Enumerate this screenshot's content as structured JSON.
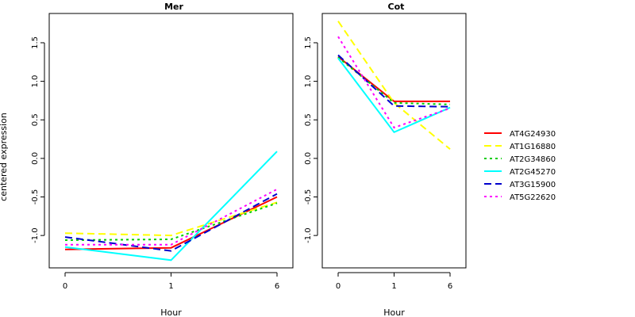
{
  "chart_data": {
    "type": "line",
    "ylabel": "centered expression",
    "xlabel": "Hour",
    "x_ticks": [
      "0",
      "1",
      "6"
    ],
    "y_ticks": [
      "-1.0",
      "-0.5",
      "0.0",
      "0.5",
      "1.0",
      "1.5"
    ],
    "ylim": [
      -1.42,
      1.88
    ],
    "legend_position": "right",
    "series_styles": [
      {
        "name": "AT4G24930",
        "color": "#ff0000",
        "dash": "solid"
      },
      {
        "name": "AT1G16880",
        "color": "#ffff00",
        "dash": "dashed"
      },
      {
        "name": "AT2G34860",
        "color": "#00cd00",
        "dash": "dotted"
      },
      {
        "name": "AT2G45270",
        "color": "#00ffff",
        "dash": "solid"
      },
      {
        "name": "AT3G15900",
        "color": "#0000cd",
        "dash": "dashed"
      },
      {
        "name": "AT5G22620",
        "color": "#ff00ff",
        "dash": "dotted"
      }
    ],
    "panels": [
      {
        "title": "Mer",
        "series": [
          {
            "name": "AT4G24930",
            "values": [
              -1.18,
              -1.16,
              -0.5
            ]
          },
          {
            "name": "AT1G16880",
            "values": [
              -0.97,
              -1.0,
              -0.57
            ]
          },
          {
            "name": "AT2G34860",
            "values": [
              -1.06,
              -1.05,
              -0.58
            ]
          },
          {
            "name": "AT2G45270",
            "values": [
              -1.15,
              -1.32,
              0.09
            ]
          },
          {
            "name": "AT3G15900",
            "values": [
              -1.02,
              -1.2,
              -0.46
            ]
          },
          {
            "name": "AT5G22620",
            "values": [
              -1.12,
              -1.12,
              -0.4
            ]
          }
        ]
      },
      {
        "title": "Cot",
        "series": [
          {
            "name": "AT4G24930",
            "values": [
              1.32,
              0.74,
              0.74
            ]
          },
          {
            "name": "AT1G16880",
            "values": [
              1.78,
              0.72,
              0.12
            ]
          },
          {
            "name": "AT2G34860",
            "values": [
              1.31,
              0.72,
              0.7
            ]
          },
          {
            "name": "AT2G45270",
            "values": [
              1.3,
              0.34,
              0.66
            ]
          },
          {
            "name": "AT3G15900",
            "values": [
              1.34,
              0.68,
              0.67
            ]
          },
          {
            "name": "AT5G22620",
            "values": [
              1.58,
              0.4,
              0.65
            ]
          }
        ]
      }
    ]
  }
}
